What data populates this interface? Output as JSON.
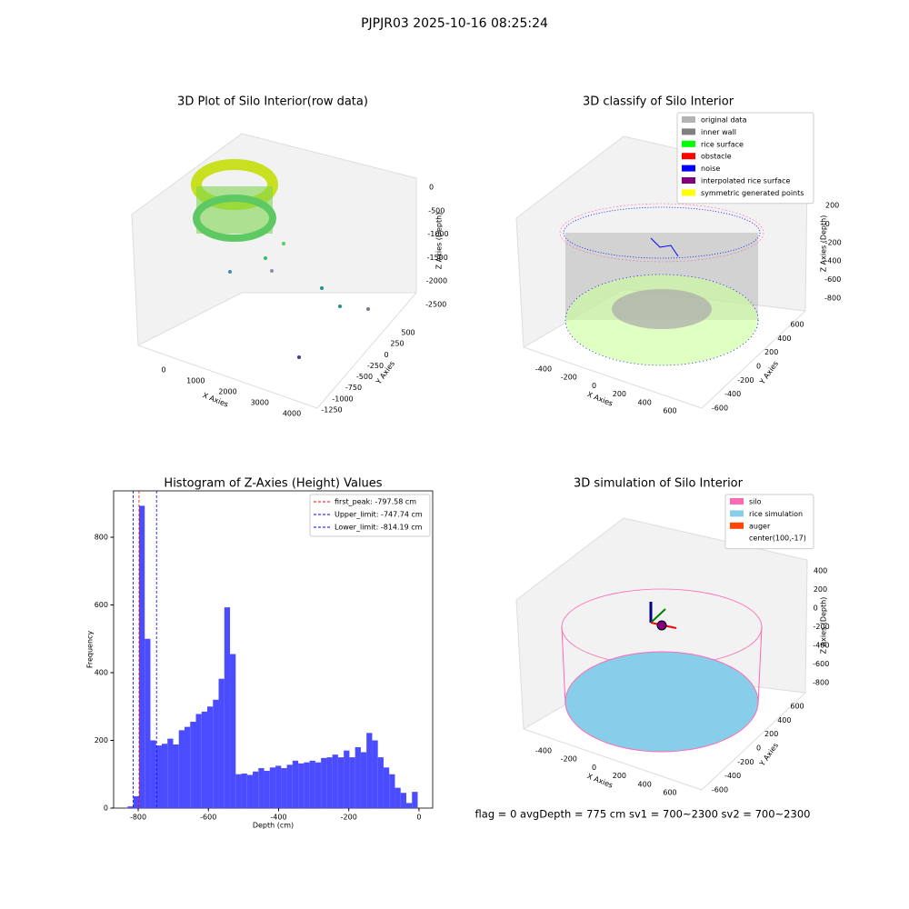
{
  "suptitle": "PJPJR03 2025-10-16 08:25:24",
  "footer": "flag = 0     avgDepth = 775 cm  sv1 = 700~2300  sv2 = 700~2300",
  "chart_data": [
    {
      "type": "scatter3d",
      "title": "3D Plot of Silo Interior(row data)",
      "xlabel": "X Axies",
      "ylabel": "Y Axies",
      "zlabel": "Z Axies (Depth)",
      "xticks": [
        0,
        1000,
        2000,
        3000,
        4000
      ],
      "yticks": [
        500,
        250,
        0,
        -250,
        -500,
        -750,
        -1000,
        -1250
      ],
      "zticks": [
        0,
        -500,
        -1000,
        -1500,
        -2000,
        -2500
      ]
    },
    {
      "type": "scatter3d",
      "title": "3D classify of Silo Interior",
      "xlabel": "X Axies",
      "ylabel": "Y Axies",
      "zlabel": "Z Axies (Depth)",
      "xticks": [
        -400,
        -200,
        0,
        200,
        400,
        600
      ],
      "yticks": [
        600,
        400,
        200,
        0,
        -200,
        -400,
        -600
      ],
      "zticks": [
        200,
        0,
        -200,
        -400,
        -600,
        -800
      ],
      "legend": [
        {
          "name": "original data",
          "color": "#b3b3b3"
        },
        {
          "name": "inner wall",
          "color": "#808080"
        },
        {
          "name": "rice surface",
          "color": "#00ff00"
        },
        {
          "name": "obstacle",
          "color": "#ff0000"
        },
        {
          "name": "noise",
          "color": "#0000ff"
        },
        {
          "name": "interpolated rice surface",
          "color": "#800080"
        },
        {
          "name": "symmetric generated points",
          "color": "#ffff00"
        }
      ]
    },
    {
      "type": "histogram",
      "title": "Histogram of Z-Axies (Height) Values",
      "xlabel": "Depth (cm)",
      "ylabel": "Frequency",
      "color": "#4b4bff",
      "bins": [
        -830,
        -813.8,
        -797.6,
        -781.4,
        -765.2,
        -749,
        -732.8,
        -716.6,
        -700.4,
        -684.2,
        -668,
        -651.8,
        -635.6,
        -619.4,
        -603.2,
        -587,
        -570.8,
        -554.6,
        -538.4,
        -522.2,
        -506,
        -489.8,
        -473.6,
        -457.4,
        -441.2,
        -425,
        -408.8,
        -392.6,
        -376.4,
        -360.2,
        -344,
        -327.8,
        -311.6,
        -295.4,
        -279.2,
        -263,
        -246.8,
        -230.6,
        -214.4,
        -198.2,
        -182,
        -165.8,
        -149.6,
        -133.4,
        -117.2,
        -101,
        -84.8,
        -68.6,
        -52.4,
        -36.2,
        -20,
        -3.8
      ],
      "values": [
        5,
        35,
        893,
        500,
        200,
        185,
        190,
        205,
        188,
        230,
        240,
        255,
        278,
        285,
        300,
        320,
        382,
        593,
        455,
        100,
        102,
        98,
        108,
        118,
        110,
        120,
        125,
        118,
        128,
        140,
        132,
        135,
        140,
        135,
        148,
        150,
        158,
        150,
        170,
        150,
        180,
        165,
        222,
        200,
        150,
        120,
        100,
        60,
        45,
        15,
        48
      ],
      "xlim": [
        -870,
        39
      ],
      "ylim": [
        0,
        937
      ],
      "xticks": [
        -800,
        -600,
        -400,
        -200,
        0
      ],
      "yticks": [
        0,
        200,
        400,
        600,
        800
      ],
      "lines": [
        {
          "name": "first_peak: -797.58 cm",
          "value": -797.58,
          "color": "#ff0000"
        },
        {
          "name": "Upper_limit: -747.74 cm",
          "value": -747.74,
          "color": "#0000ff"
        },
        {
          "name": "Lower_limit: -814.19 cm",
          "value": -814.19,
          "color": "#0000ff"
        }
      ]
    },
    {
      "type": "scatter3d",
      "title": "3D simulation of Silo Interior",
      "xlabel": "X Axies",
      "ylabel": "Y Axies",
      "zlabel": "Z Axies (Depth)",
      "xticks": [
        -400,
        -200,
        0,
        200,
        400,
        600
      ],
      "yticks": [
        600,
        400,
        200,
        0,
        -200,
        -400,
        -600
      ],
      "zticks": [
        400,
        200,
        0,
        -200,
        -400,
        -600,
        -800
      ],
      "legend": [
        {
          "name": "silo",
          "color": "#ff69b4"
        },
        {
          "name": "rice simulation",
          "color": "#87ceeb"
        },
        {
          "name": "auger",
          "color": "#ff4500"
        },
        {
          "name": "center(100,-17)",
          "color": "#ffffff"
        }
      ]
    }
  ]
}
